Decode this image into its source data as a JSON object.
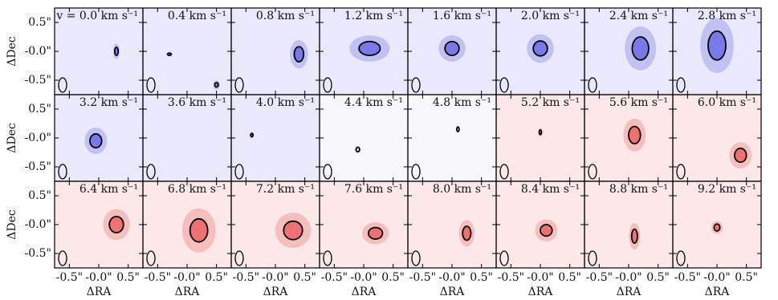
{
  "chart_data": {
    "type": "channel-map",
    "xlabel": "ΔRA",
    "ylabel": "ΔDec",
    "xlim": [
      -0.75,
      0.75
    ],
    "ylim": [
      -0.75,
      0.75
    ],
    "xticks": [
      {
        "value": -0.5,
        "label": "-0.5\""
      },
      {
        "value": 0,
        "label": "-0.0\""
      },
      {
        "value": 0.5,
        "label": "0.5\""
      }
    ],
    "yticks": [
      {
        "value": 0.5,
        "label": "0.5\""
      },
      {
        "value": 0,
        "label": "-0.0\""
      },
      {
        "value": -0.5,
        "label": "-0.5\""
      }
    ],
    "panels": [
      {
        "label": "v = 0.0 km s⁻¹",
        "color": "#4a4ae0",
        "contours": [
          [
            0.3,
            0.0,
            0.03,
            0.07
          ]
        ]
      },
      {
        "label": "0.4 km s⁻¹",
        "color": "#4a4ae0",
        "contours": [
          [
            -0.3,
            -0.05,
            0.03,
            0.02
          ],
          [
            0.5,
            -0.58,
            0.03,
            0.04
          ]
        ]
      },
      {
        "label": "0.8 km s⁻¹",
        "color": "#4a4ae0",
        "contours": [
          [
            0.4,
            -0.05,
            0.08,
            0.13
          ]
        ]
      },
      {
        "label": "1.2 km s⁻¹",
        "color": "#4a4ae0",
        "contours": [
          [
            0.1,
            0.05,
            0.18,
            0.12
          ]
        ]
      },
      {
        "label": "1.6 km s⁻¹",
        "color": "#4a4ae0",
        "contours": [
          [
            0.0,
            0.05,
            0.12,
            0.12
          ]
        ]
      },
      {
        "label": "2.0 km s⁻¹",
        "color": "#4a4ae0",
        "contours": [
          [
            0.0,
            0.05,
            0.12,
            0.13
          ]
        ]
      },
      {
        "label": "2.4 km s⁻¹",
        "color": "#4a4ae0",
        "contours": [
          [
            0.2,
            0.05,
            0.14,
            0.2
          ]
        ]
      },
      {
        "label": "2.8 km s⁻¹",
        "color": "#4a4ae0",
        "contours": [
          [
            0.0,
            0.1,
            0.15,
            0.25
          ]
        ]
      },
      {
        "label": "3.2 km s⁻¹",
        "color": "#4a4ae0",
        "contours": [
          [
            -0.05,
            -0.05,
            0.1,
            0.12
          ]
        ]
      },
      {
        "label": "3.6 km s⁻¹",
        "color": "#4a4ae0",
        "contours": []
      },
      {
        "label": "4.0 km s⁻¹",
        "color": "#4a4ae0",
        "contours": [
          [
            -0.4,
            0.05,
            0.02,
            0.03
          ]
        ]
      },
      {
        "label": "4.4 km s⁻¹",
        "color": "#c8c8d8",
        "contours": [
          [
            -0.1,
            -0.2,
            0.03,
            0.04
          ]
        ]
      },
      {
        "label": "4.8 km s⁻¹",
        "color": "#c8c8d8",
        "contours": [
          [
            0.1,
            0.15,
            0.02,
            0.04
          ]
        ]
      },
      {
        "label": "5.2 km s⁻¹",
        "color": "#e84040",
        "contours": [
          [
            0.0,
            0.1,
            0.02,
            0.04
          ]
        ]
      },
      {
        "label": "5.6 km s⁻¹",
        "color": "#e84040",
        "contours": [
          [
            0.1,
            0.05,
            0.1,
            0.15
          ]
        ]
      },
      {
        "label": "6.0 km s⁻¹",
        "color": "#e84040",
        "contours": [
          [
            0.4,
            -0.3,
            0.1,
            0.12
          ]
        ]
      },
      {
        "label": "6.4 km s⁻¹",
        "color": "#e84040",
        "contours": [
          [
            0.3,
            0.0,
            0.12,
            0.14
          ]
        ]
      },
      {
        "label": "6.8 km s⁻¹",
        "color": "#e84040",
        "contours": [
          [
            0.2,
            -0.1,
            0.15,
            0.2
          ]
        ]
      },
      {
        "label": "7.2 km s⁻¹",
        "color": "#e84040",
        "contours": [
          [
            0.3,
            -0.1,
            0.16,
            0.16
          ]
        ]
      },
      {
        "label": "7.6 km s⁻¹",
        "color": "#e84040",
        "contours": [
          [
            0.2,
            -0.15,
            0.12,
            0.1
          ]
        ]
      },
      {
        "label": "8.0 km s⁻¹",
        "color": "#e84040",
        "contours": [
          [
            0.25,
            -0.15,
            0.07,
            0.12
          ]
        ]
      },
      {
        "label": "8.4 km s⁻¹",
        "color": "#e84040",
        "contours": [
          [
            0.1,
            -0.1,
            0.1,
            0.1
          ]
        ]
      },
      {
        "label": "8.8 km s⁻¹",
        "color": "#e84040",
        "contours": [
          [
            0.1,
            -0.2,
            0.05,
            0.12
          ]
        ]
      },
      {
        "label": "9.2 km s⁻¹",
        "color": "#e84040",
        "contours": [
          [
            0.0,
            -0.05,
            0.05,
            0.06
          ]
        ]
      }
    ]
  }
}
